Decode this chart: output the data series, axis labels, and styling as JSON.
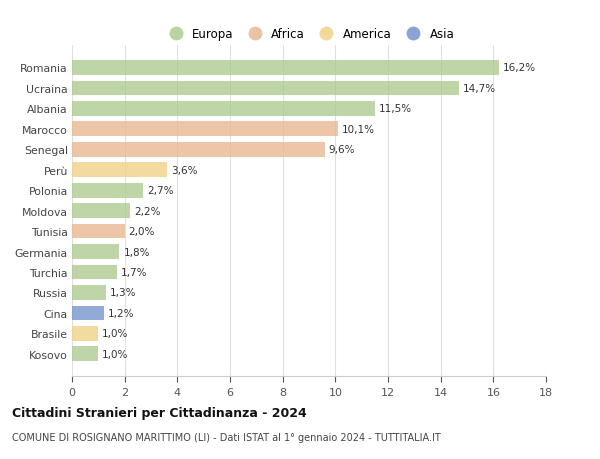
{
  "countries": [
    "Romania",
    "Ucraina",
    "Albania",
    "Marocco",
    "Senegal",
    "Perù",
    "Polonia",
    "Moldova",
    "Tunisia",
    "Germania",
    "Turchia",
    "Russia",
    "Cina",
    "Brasile",
    "Kosovo"
  ],
  "values": [
    16.2,
    14.7,
    11.5,
    10.1,
    9.6,
    3.6,
    2.7,
    2.2,
    2.0,
    1.8,
    1.7,
    1.3,
    1.2,
    1.0,
    1.0
  ],
  "labels": [
    "16,2%",
    "14,7%",
    "11,5%",
    "10,1%",
    "9,6%",
    "3,6%",
    "2,7%",
    "2,2%",
    "2,0%",
    "1,8%",
    "1,7%",
    "1,3%",
    "1,2%",
    "1,0%",
    "1,0%"
  ],
  "colors": [
    "#a8c98a",
    "#a8c98a",
    "#a8c98a",
    "#e8b48a",
    "#e8b48a",
    "#f0d080",
    "#a8c98a",
    "#a8c98a",
    "#e8b48a",
    "#a8c98a",
    "#a8c98a",
    "#a8c98a",
    "#6e8ecb",
    "#f0d080",
    "#a8c98a"
  ],
  "legend_labels": [
    "Europa",
    "Africa",
    "America",
    "Asia"
  ],
  "legend_colors": [
    "#a8c98a",
    "#e8b48a",
    "#f0d080",
    "#6e8ecb"
  ],
  "xlim": [
    0,
    18
  ],
  "xticks": [
    0,
    2,
    4,
    6,
    8,
    10,
    12,
    14,
    16,
    18
  ],
  "title": "Cittadini Stranieri per Cittadinanza - 2024",
  "subtitle": "COMUNE DI ROSIGNANO MARITTIMO (LI) - Dati ISTAT al 1° gennaio 2024 - TUTTITALIA.IT",
  "bg_color": "#ffffff",
  "grid_color": "#e0e0e0"
}
